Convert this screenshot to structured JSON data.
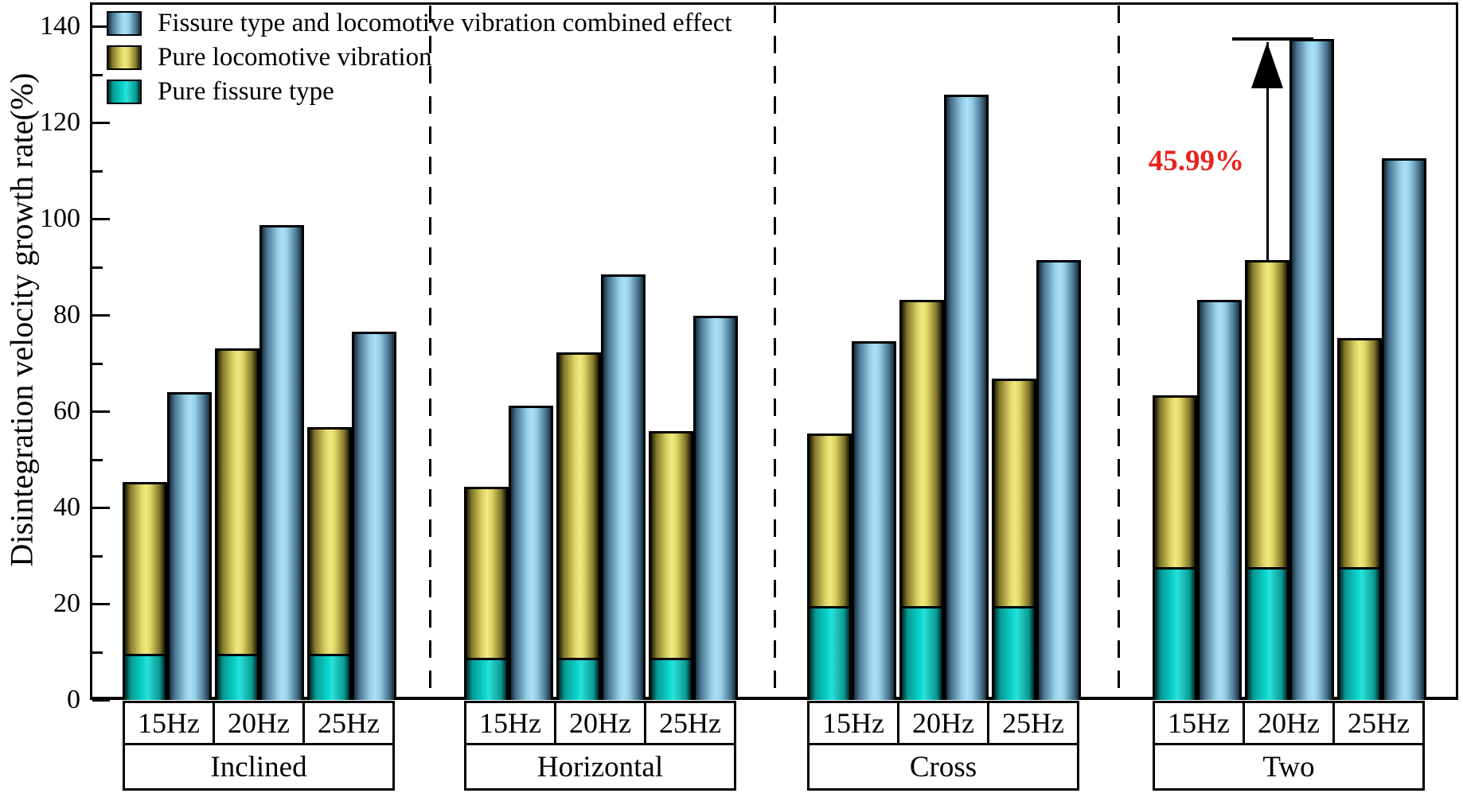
{
  "chart_data": {
    "type": "bar",
    "title": "",
    "ylabel": "Disintegration velocity growth rate(%)",
    "ylim": [
      0,
      145
    ],
    "ytick_major": [
      0,
      20,
      40,
      60,
      80,
      100,
      120,
      140
    ],
    "ytick_minor_step": 10,
    "grid": false,
    "legend_position": "top-left",
    "legend": [
      {
        "label": "Fissure type and locomotive vibration combined effect",
        "color": "#abdff5"
      },
      {
        "label": "Pure locomotive vibration",
        "color": "#f2ea7e"
      },
      {
        "label": "Pure fissure type",
        "color": "#0cd9d1"
      }
    ],
    "frequencies": [
      "15Hz",
      "20Hz",
      "25Hz"
    ],
    "groups": [
      {
        "name": "Inclined",
        "pure_fissure_type": 9.6,
        "pure_locomotive_stack_top": [
          45.3,
          73.0,
          56.7
        ],
        "combined": [
          64.0,
          98.7,
          76.5
        ]
      },
      {
        "name": "Horizontal",
        "pure_fissure_type": 8.8,
        "pure_locomotive_stack_top": [
          44.3,
          72.2,
          55.9
        ],
        "combined": [
          61.2,
          88.4,
          79.8
        ]
      },
      {
        "name": "Cross",
        "pure_fissure_type": 19.5,
        "pure_locomotive_stack_top": [
          55.4,
          83.1,
          66.8
        ],
        "combined": [
          74.5,
          125.8,
          91.4
        ]
      },
      {
        "name": "Two",
        "pure_fissure_type": 27.6,
        "pure_locomotive_stack_top": [
          63.3,
          91.4,
          75.2
        ],
        "combined": [
          83.1,
          137.4,
          112.6
        ]
      }
    ],
    "annotation": {
      "text": "45.99%",
      "color": "#e8231e",
      "group": "Two",
      "frequency": "20Hz",
      "from_value": 91.4,
      "to_value": 137.4
    },
    "colors": {
      "combined_effect": "#abdff5",
      "pure_locomotive_vibration": "#f2ea7e",
      "pure_fissure_type": "#0cd9d1",
      "bar_outline": "#000000",
      "annotation_text": "#e8231e"
    }
  }
}
